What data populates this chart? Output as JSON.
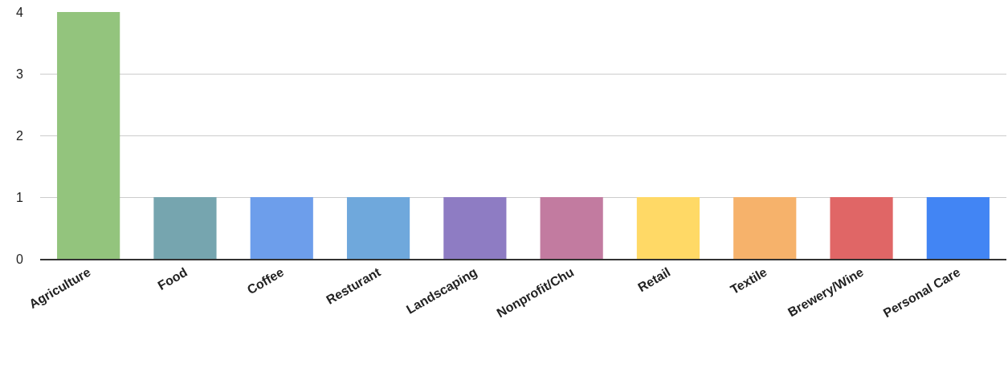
{
  "chart_data": {
    "type": "bar",
    "categories": [
      "Agriculture",
      "Food",
      "Coffee",
      "Resturant",
      "Landscaping",
      "Nonprofit/Chu",
      "Retail",
      "Textile",
      "Brewery/Wine",
      "Personal Care"
    ],
    "values": [
      4,
      1,
      1,
      1,
      1,
      1,
      1,
      1,
      1,
      1
    ],
    "colors": [
      "#93c47d",
      "#76a5af",
      "#6d9eeb",
      "#6fa8dc",
      "#8e7cc3",
      "#c27ba0",
      "#ffd966",
      "#f6b26b",
      "#e06666",
      "#4285f4"
    ],
    "ylim": [
      0,
      4
    ],
    "yticks": [
      0,
      1,
      2,
      3,
      4
    ],
    "grid": "y"
  }
}
